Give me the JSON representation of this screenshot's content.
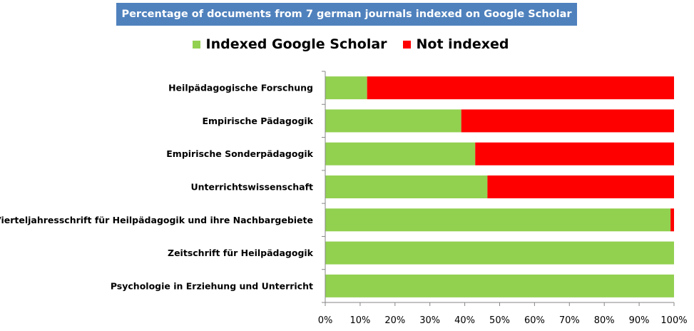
{
  "chart_data": {
    "type": "bar",
    "orientation": "horizontal",
    "stacked": true,
    "title": "Percentage of documents from 7 german journals indexed on Google Scholar",
    "categories": [
      "Heilpädagogische Forschung",
      "Empirische Pädagogik",
      "Empirische Sonderpädagogik",
      "Unterrichtswissenschaft",
      "Vierteljahresschrift für Heilpädagogik und ihre Nachbargebiete",
      "Zeitschrift für Heilpädagogik",
      "Psychologie in Erziehung und Unterricht"
    ],
    "series": [
      {
        "name": "Indexed Google Scholar",
        "color": "#92d050",
        "values": [
          12,
          39,
          43,
          46.5,
          99,
          100,
          100
        ]
      },
      {
        "name": "Not indexed",
        "color": "#ff0000",
        "values": [
          88,
          61,
          57,
          53.5,
          1,
          0,
          0
        ]
      }
    ],
    "xlim": [
      0,
      100
    ],
    "xticks": [
      "0%",
      "10%",
      "20%",
      "30%",
      "40%",
      "50%",
      "60%",
      "70%",
      "80%",
      "90%",
      "100%"
    ],
    "xlabel": "",
    "ylabel": "",
    "grid": false,
    "legend_position": "top"
  },
  "colors": {
    "title_background": "#4f81bd",
    "title_text": "#ffffff",
    "axis": "#868686"
  }
}
